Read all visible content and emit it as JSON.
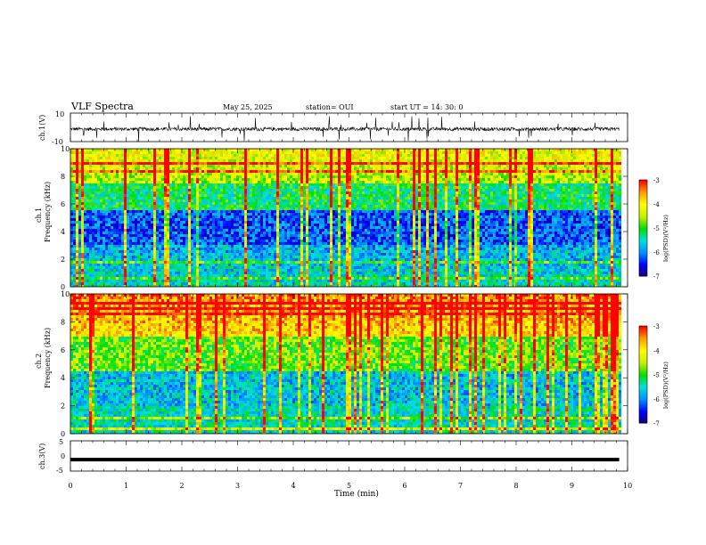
{
  "header": {
    "title": "VLF Spectra",
    "date": "May 25, 2025",
    "station": "station= OUI",
    "start": "start UT =   14: 30: 0"
  },
  "colors": {
    "colormap": [
      "#1a0070",
      "#0000ff",
      "#0090ff",
      "#00e0e0",
      "#00e000",
      "#c8f000",
      "#ffff00",
      "#ffa000",
      "#ff0000",
      "#ffffff"
    ],
    "trace": "#000000"
  },
  "chart_data": [
    {
      "type": "line",
      "panel": "ch1-waveform",
      "ylabel": "ch.1(V)",
      "ylim": [
        -10,
        10
      ],
      "yticks": [
        "10",
        "-10"
      ],
      "xlim": [
        0,
        10
      ],
      "baseline": -1.2,
      "noise_amplitude": 2.5,
      "data_end_min": 9.85
    },
    {
      "type": "heatmap",
      "panel": "ch1-spectrogram",
      "ylabel_top": "ch.1",
      "ylabel": "Frequency (kHz)",
      "yticks": [
        "0",
        "2",
        "4",
        "6",
        "8",
        "10"
      ],
      "ylim": [
        0,
        10
      ],
      "xlim": [
        0,
        10
      ],
      "colorbar_label": "log(PSD)(V²/Hz)",
      "colorbar_ticks": [
        "-3",
        "-4",
        "-5",
        "-6",
        "-7"
      ],
      "zlim": [
        -7,
        -3
      ],
      "data_end_min": 9.85
    },
    {
      "type": "heatmap",
      "panel": "ch2-spectrogram",
      "ylabel_top": "ch.2",
      "ylabel": "Frequency (kHz)",
      "yticks": [
        "0",
        "2",
        "4",
        "6",
        "8",
        "10"
      ],
      "ylim": [
        0,
        10
      ],
      "xlim": [
        0,
        10
      ],
      "colorbar_label": "log(PSD)(V²/Hz)",
      "colorbar_ticks": [
        "-3",
        "-4",
        "-5",
        "-6",
        "-7"
      ],
      "zlim": [
        -7,
        -3
      ],
      "data_end_min": 9.85
    },
    {
      "type": "line",
      "panel": "ch3-waveform",
      "ylabel": "ch.3(V)",
      "ylim": [
        -5,
        5
      ],
      "yticks": [
        "5",
        "0",
        "-5"
      ],
      "xlim": [
        0,
        10
      ],
      "constant_value": -1.2,
      "data_end_min": 9.85
    }
  ],
  "xaxis": {
    "label": "Time (min)",
    "ticks": [
      "0",
      "1",
      "2",
      "3",
      "4",
      "5",
      "6",
      "7",
      "8",
      "9",
      "10"
    ]
  }
}
